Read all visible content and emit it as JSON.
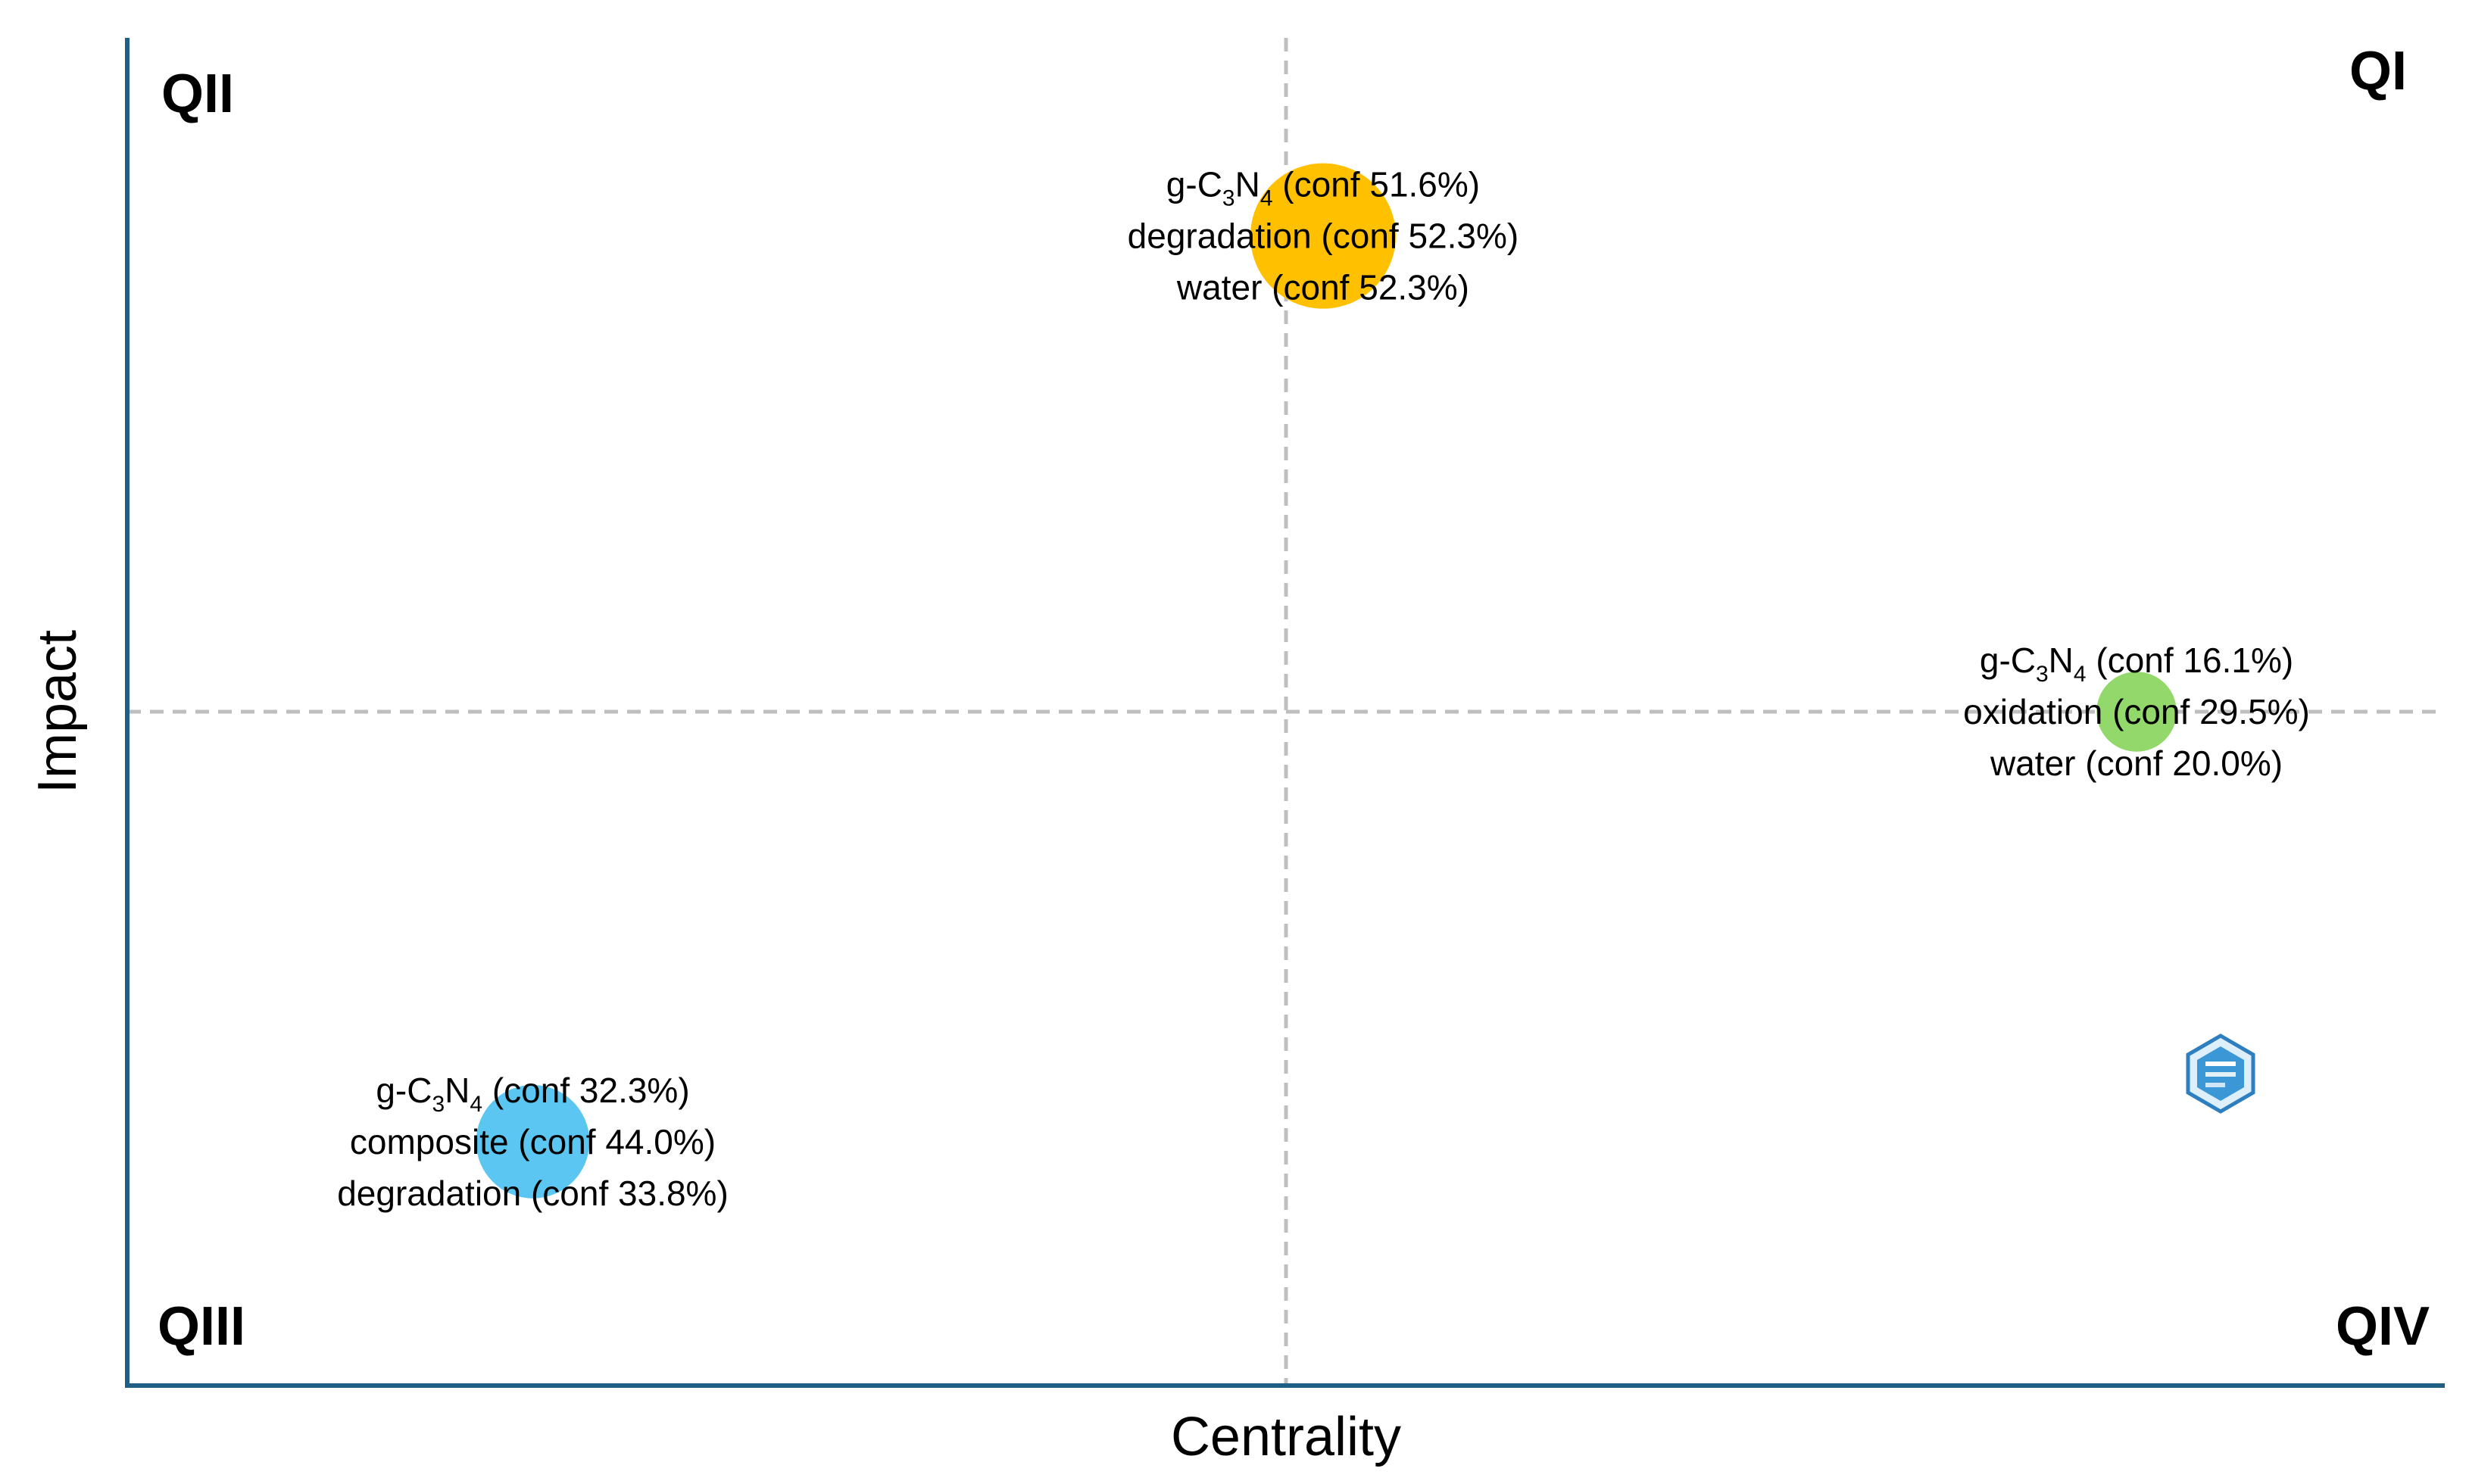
{
  "chart_data": {
    "type": "scatter",
    "title": "",
    "xlabel": "Centrality",
    "ylabel": "Impact",
    "xlim": [
      0,
      1
    ],
    "ylim": [
      0,
      1
    ],
    "grid": false,
    "reference_lines": {
      "x": 0.5,
      "y": 0.5
    },
    "quadrants": [
      {
        "id": "qi",
        "label": "QI",
        "position": "top-right"
      },
      {
        "id": "qii",
        "label": "QII",
        "position": "top-left"
      },
      {
        "id": "qiii",
        "label": "QIII",
        "position": "bottom-left"
      },
      {
        "id": "qiv",
        "label": "QIV",
        "position": "bottom-right"
      }
    ],
    "points": [
      {
        "id": "cluster-1",
        "x": 0.516,
        "y": 0.853,
        "size": 1.0,
        "color": "#FFC000",
        "labels": [
          {
            "prefix": "g-C",
            "sub1": "3",
            "mid": "N",
            "sub2": "4",
            "suffix": " (conf 51.6%)"
          },
          {
            "text": "degradation (conf 52.3%)"
          },
          {
            "text": "water (conf 52.3%)"
          }
        ]
      },
      {
        "id": "cluster-2",
        "x": 0.867,
        "y": 0.5,
        "size": 0.55,
        "color": "#92D86A",
        "labels": [
          {
            "prefix": "g-C",
            "sub1": "3",
            "mid": "N",
            "sub2": "4",
            "suffix": " (conf 16.1%)"
          },
          {
            "text": "oxidation (conf 29.5%)"
          },
          {
            "text": "water (conf 20.0%)"
          }
        ]
      },
      {
        "id": "cluster-3",
        "x": 0.175,
        "y": 0.181,
        "size": 0.78,
        "color": "#5BC6F2",
        "labels": [
          {
            "prefix": "g-C",
            "sub1": "3",
            "mid": "N",
            "sub2": "4",
            "suffix": " (conf 32.3%)"
          },
          {
            "text": "composite (conf 44.0%)"
          },
          {
            "text": "degradation (conf 33.8%)"
          }
        ]
      }
    ]
  },
  "colors": {
    "axis": "#1F5F86",
    "refline": "#BFBFBF",
    "text": "#000000"
  },
  "logo": {
    "icon": "hexagon-logo-icon"
  }
}
